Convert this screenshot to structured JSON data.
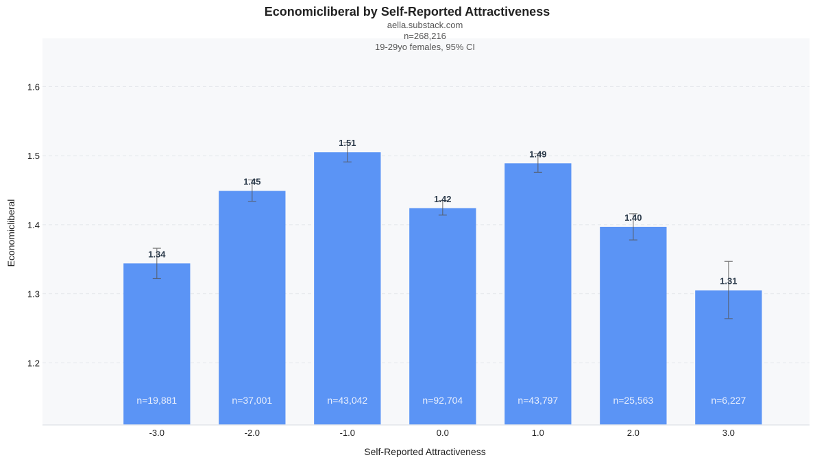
{
  "chart_data": {
    "type": "bar",
    "title": "Economicliberal by Self-Reported Attractiveness",
    "subtitle_lines": [
      "aella.substack.com",
      "n=268,216",
      "19-29yo females, 95% CI"
    ],
    "xlabel": "Self-Reported Attractiveness",
    "ylabel": "Economicliberal",
    "categories": [
      "-3.0",
      "-2.0",
      "-1.0",
      "0.0",
      "1.0",
      "2.0",
      "3.0"
    ],
    "values": [
      1.344,
      1.449,
      1.505,
      1.424,
      1.489,
      1.397,
      1.305
    ],
    "value_labels": [
      "1.34",
      "1.45",
      "1.51",
      "1.42",
      "1.49",
      "1.40",
      "1.31"
    ],
    "ci_low": [
      1.322,
      1.434,
      1.491,
      1.414,
      1.476,
      1.378,
      1.264
    ],
    "ci_high": [
      1.366,
      1.465,
      1.519,
      1.435,
      1.503,
      1.416,
      1.347
    ],
    "counts": [
      "n=19,881",
      "n=37,001",
      "n=43,042",
      "n=92,704",
      "n=43,797",
      "n=25,563",
      "n=6,227"
    ],
    "ylim": [
      1.11,
      1.67
    ],
    "yticks": [
      "1.2",
      "1.3",
      "1.4",
      "1.5",
      "1.6"
    ],
    "grid": true,
    "colors": {
      "bar": "#5b94f5",
      "background": "#f7f8fa",
      "grid": "#e3e6ea",
      "errorbar": "#555555"
    }
  }
}
